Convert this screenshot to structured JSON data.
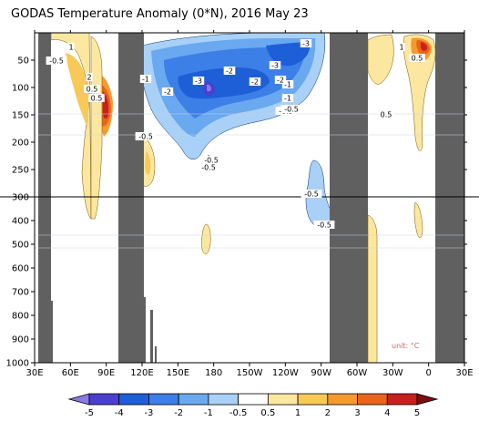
{
  "title": "GODAS Temperature Anomaly (0*N), 2016 May 23",
  "unit_label": "unit: °C",
  "chart_data": {
    "type": "heatmap",
    "title": "GODAS Temperature Anomaly (0*N), 2016 May 23",
    "x_axis": {
      "ticks": [
        "30E",
        "60E",
        "90E",
        "120E",
        "150E",
        "180",
        "150W",
        "120W",
        "90W",
        "60W",
        "30W",
        "0",
        "30E"
      ],
      "range_deg_east": [
        30,
        390
      ]
    },
    "y_axis": {
      "upper_panel_ticks": [
        50,
        100,
        150,
        200,
        250,
        300
      ],
      "lower_panel_ticks": [
        300,
        400,
        500,
        600,
        700,
        800,
        900,
        1000
      ],
      "range_m": [
        0,
        1000
      ],
      "inverted": true,
      "split_depth": 300
    },
    "colorbar": {
      "labels": [
        "-5",
        "-4",
        "-3",
        "-2",
        "-1",
        "-0.5",
        "0.5",
        "1",
        "2",
        "3",
        "4",
        "5"
      ],
      "colors": [
        "#8a7ae6",
        "#4b3fcf",
        "#1e5fd8",
        "#3c7fe6",
        "#6aa8f0",
        "#a9d0f7",
        "#ffffff",
        "#fbe7a0",
        "#f9c957",
        "#f59a30",
        "#e8641c",
        "#c8201c",
        "#7a0f0f"
      ]
    },
    "land_masks": [
      {
        "name": "Africa/Sumatra",
        "lon_range": [
          40,
          50
        ]
      },
      {
        "name": "Indonesia",
        "lon_range": [
          98,
          112
        ]
      },
      {
        "name": "South America",
        "lon_range": [
          278,
          292
        ]
      },
      {
        "name": "Africa",
        "lon_range": [
          369,
          390
        ]
      }
    ],
    "contour_labels": [
      "-0.5",
      "-1",
      "-2",
      "-3",
      "-3",
      "-2",
      "-1",
      "-0.5",
      "1",
      "2",
      "0.5",
      "0.5",
      "-0.5",
      "-0.5",
      "-1",
      "-0.5",
      "-0.5",
      "-0.5",
      "-0.5",
      "-1",
      "1",
      "0.5",
      "0.5",
      "-3",
      "-2",
      "-3",
      "-2"
    ],
    "features": [
      {
        "name": "warm core West Pacific/Indonesia",
        "lon": 96,
        "depth_m": 110,
        "value": 4
      },
      {
        "name": "cold core Central Pacific",
        "lon": 180,
        "depth_m": 105,
        "value": -4
      },
      {
        "name": "warm core Atlantic surface",
        "lon": 0,
        "depth_m": 40,
        "value": 4
      }
    ]
  }
}
